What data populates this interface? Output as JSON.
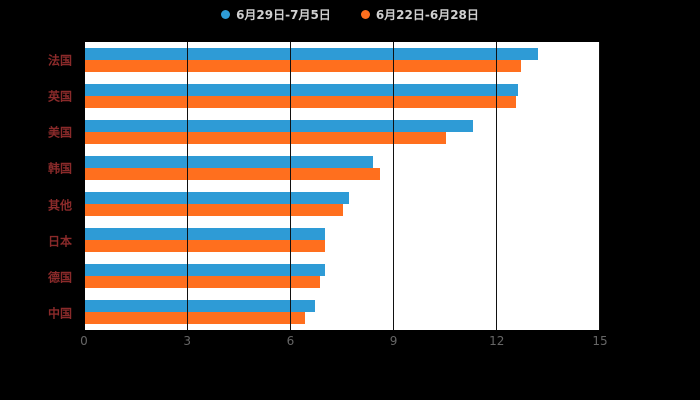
{
  "chart_data": {
    "type": "bar",
    "orientation": "horizontal",
    "title": "",
    "xlabel": "",
    "ylabel": "",
    "categories": [
      "法国",
      "英国",
      "美国",
      "韩国",
      "其他",
      "日本",
      "德国",
      "中国"
    ],
    "series": [
      {
        "name": "6月29日-7月5日",
        "color": "#2E9BD6",
        "values": [
          13.2,
          12.6,
          11.3,
          8.4,
          7.7,
          7.0,
          7.0,
          6.7
        ]
      },
      {
        "name": "6月22日-6月28日",
        "color": "#FF6F1E",
        "values": [
          12.7,
          12.55,
          10.5,
          8.6,
          7.5,
          7.0,
          6.85,
          6.4
        ]
      }
    ],
    "xlim": [
      0,
      15
    ],
    "x_ticks": [
      0,
      3,
      6,
      9,
      12,
      15
    ],
    "grid": true,
    "legend_position": "top"
  },
  "colors": {
    "background": "#000000",
    "plot_background": "#ffffff",
    "gridline": "#111111",
    "category_label": "#8a2a2a",
    "tick_label": "#666666",
    "legend_text": "#d0d0d0"
  }
}
